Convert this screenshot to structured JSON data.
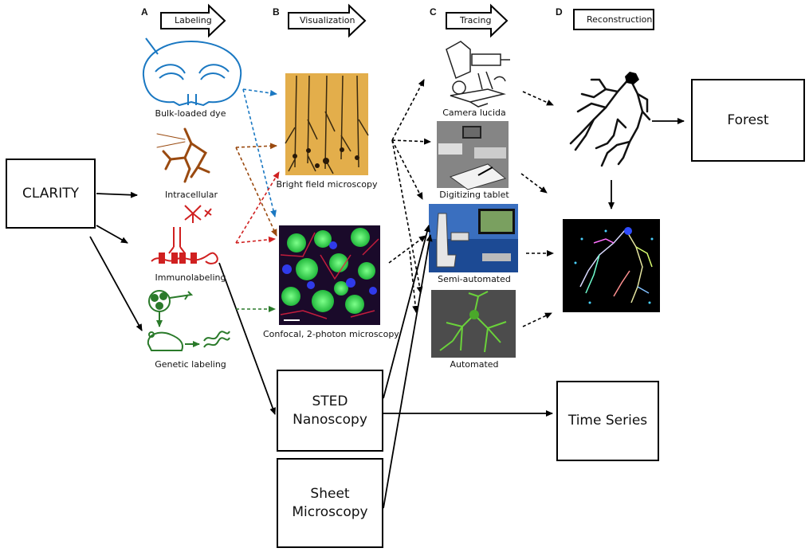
{
  "stages": [
    {
      "letter": "A",
      "label": "Labeling"
    },
    {
      "letter": "B",
      "label": "Visualization"
    },
    {
      "letter": "C",
      "label": "Tracing"
    },
    {
      "letter": "D",
      "label": "Reconstruction"
    }
  ],
  "boxes": {
    "clarity": "CLARITY",
    "forest": "Forest",
    "sted": "STED\nNanoscopy",
    "sheet": "Sheet\nMicroscopy",
    "time_series": "Time Series"
  },
  "labeling": {
    "bulk": "Bulk-loaded dye",
    "intracellular": "Intracellular",
    "immuno": "Immunolabeling",
    "genetic": "Genetic labeling"
  },
  "visualization": {
    "bright_field": "Bright field microscopy",
    "confocal": "Confocal, 2-photon microscopy"
  },
  "tracing": {
    "camera_lucida": "Camera lucida",
    "digitizing_tablet": "Digitizing tablet",
    "semi_automated": "Semi-automated",
    "automated": "Automated"
  },
  "colors": {
    "blue_label": "#1a78c2",
    "brown_label": "#9a4a10",
    "red_label": "#d02020",
    "green_label": "#2a7a2a",
    "confocal_green": "#3adf5a",
    "bright_field_bg": "#e8b85a"
  }
}
